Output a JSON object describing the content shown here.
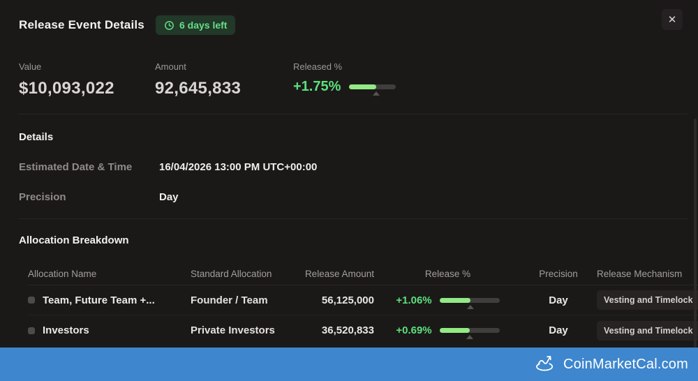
{
  "modal": {
    "title": "Release Event Details",
    "countdown": "6 days left",
    "close_glyph": "✕"
  },
  "stats": [
    {
      "label": "Value",
      "value": "$10,093,022"
    },
    {
      "label": "Amount",
      "value": "92,645,833"
    },
    {
      "label": "Released %",
      "value": "+1.75%",
      "progress_pct": 57
    }
  ],
  "details": {
    "heading": "Details",
    "rows": [
      {
        "label": "Estimated Date & Time",
        "value": "16/04/2026 13:00 PM UTC+00:00"
      },
      {
        "label": "Precision",
        "value": "Day"
      }
    ]
  },
  "allocation": {
    "heading": "Allocation Breakdown",
    "columns": [
      "Allocation Name",
      "Standard Allocation",
      "Release Amount",
      "Release %",
      "Precision",
      "Release Mechanism"
    ],
    "rows": [
      {
        "name": "Team, Future Team +...",
        "standard": "Founder / Team",
        "amount": "56,125,000",
        "release_pct": "+1.06%",
        "progress_pct": 52,
        "precision": "Day",
        "mechanism": "Vesting and Timelock"
      },
      {
        "name": "Investors",
        "standard": "Private Investors",
        "amount": "36,520,833",
        "release_pct": "+0.69%",
        "progress_pct": 50,
        "precision": "Day",
        "mechanism": "Vesting and Timelock"
      }
    ]
  },
  "footer": {
    "brand": "CoinMarketCal.com"
  },
  "colors": {
    "background": "#1b1918",
    "accent_green": "#5ce07c",
    "bar_fill": "#92e985",
    "badge_bg": "#223829",
    "footer_blue": "#3e86cd"
  }
}
